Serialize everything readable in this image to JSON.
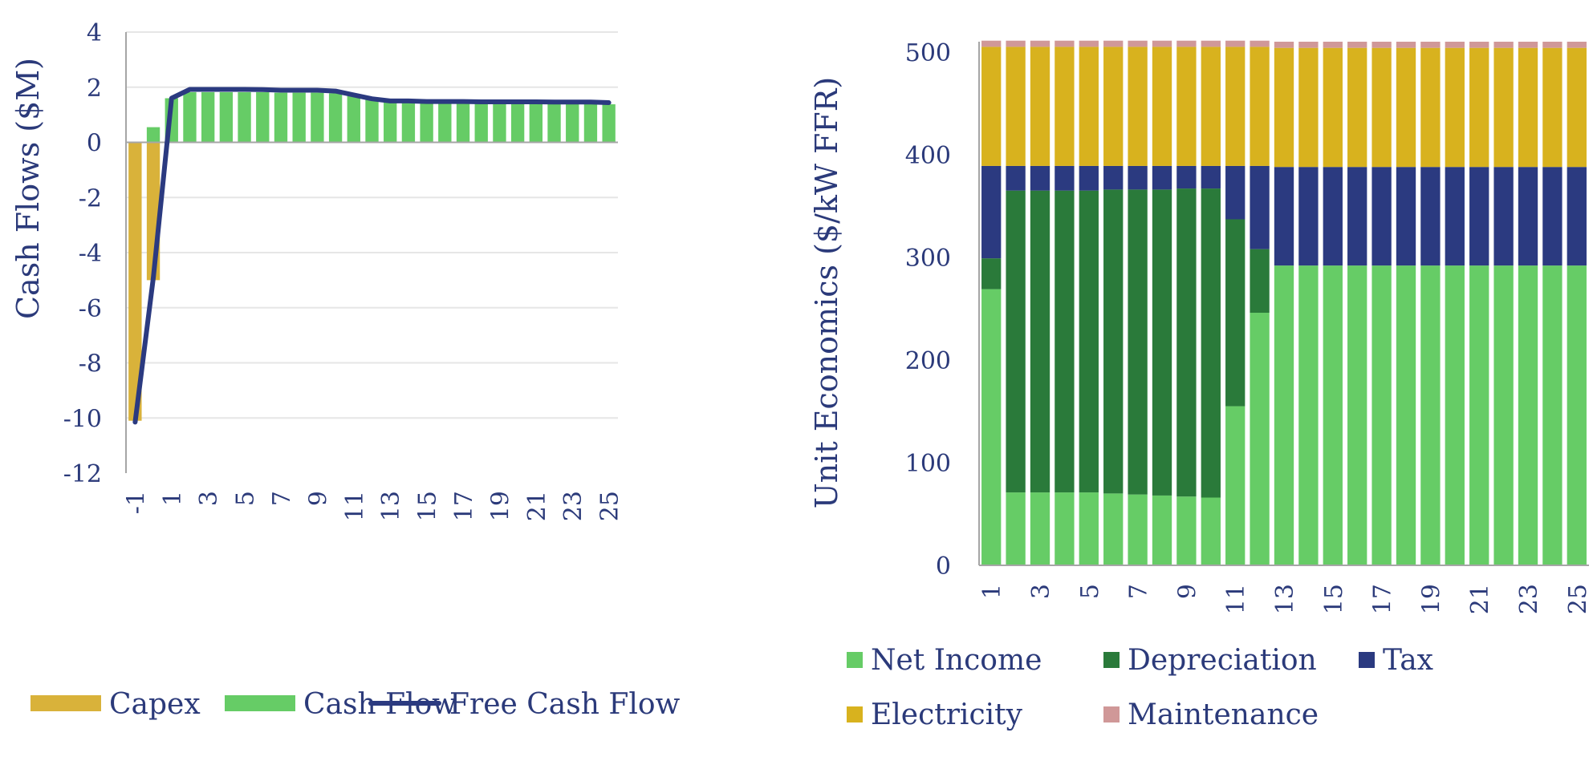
{
  "colors": {
    "capex": "#d9b23a",
    "cash_flow": "#66cc66",
    "free_cash_flow": "#2b3a80",
    "net_income": "#66cc66",
    "depreciation": "#2a7a3a",
    "tax": "#2b3a80",
    "electricity": "#d8b21e",
    "maintenance": "#d09898",
    "text": "#2b3a7a",
    "grid": "#e6e6e6",
    "axis": "#a6a6a6"
  },
  "chart_data": [
    {
      "type": "bar",
      "subtype": "bar+line",
      "ylabel": "Cash Flows ($M)",
      "xlabel": "",
      "ylim": [
        -12,
        4
      ],
      "y_ticks": [
        4,
        2,
        0,
        -2,
        -4,
        -6,
        -8,
        -10,
        -12
      ],
      "x": [
        -1,
        0,
        1,
        2,
        3,
        4,
        5,
        6,
        7,
        8,
        9,
        10,
        11,
        12,
        13,
        14,
        15,
        16,
        17,
        18,
        19,
        20,
        21,
        22,
        23,
        24,
        25
      ],
      "x_tick_labels": [
        "-1",
        "1",
        "3",
        "5",
        "7",
        "9",
        "11",
        "13",
        "15",
        "17",
        "19",
        "21",
        "23",
        "25"
      ],
      "grid": true,
      "legend": "bottom",
      "series": [
        {
          "name": "Capex",
          "type": "bar",
          "values": [
            -10.1,
            -5.0,
            0,
            0,
            0,
            0,
            0,
            0,
            0,
            0,
            0,
            0,
            0,
            0,
            0,
            0,
            0,
            0,
            0,
            0,
            0,
            0,
            0,
            0,
            0,
            0,
            0
          ]
        },
        {
          "name": "Cash Flow",
          "type": "bar",
          "values": [
            0,
            0.55,
            1.6,
            1.82,
            1.82,
            1.82,
            1.82,
            1.82,
            1.8,
            1.8,
            1.8,
            1.78,
            1.68,
            1.55,
            1.45,
            1.44,
            1.43,
            1.42,
            1.42,
            1.41,
            1.41,
            1.4,
            1.4,
            1.4,
            1.4,
            1.39,
            1.38
          ]
        },
        {
          "name": "Free Cash Flow",
          "type": "line",
          "values": [
            -10.15,
            -4.9,
            1.6,
            1.92,
            1.92,
            1.92,
            1.92,
            1.91,
            1.89,
            1.89,
            1.89,
            1.86,
            1.72,
            1.58,
            1.5,
            1.5,
            1.48,
            1.48,
            1.48,
            1.47,
            1.47,
            1.47,
            1.47,
            1.46,
            1.46,
            1.46,
            1.44
          ]
        }
      ]
    },
    {
      "type": "bar",
      "subtype": "stacked",
      "ylabel": "Unit Economics ($/kW FFR)",
      "xlabel": "",
      "ylim": [
        0,
        510
      ],
      "y_ticks": [
        0,
        100,
        200,
        300,
        400,
        500
      ],
      "categories": [
        1,
        2,
        3,
        4,
        5,
        6,
        7,
        8,
        9,
        10,
        11,
        12,
        13,
        14,
        15,
        16,
        17,
        18,
        19,
        20,
        21,
        22,
        23,
        24,
        25
      ],
      "x_tick_labels": [
        "1",
        "3",
        "5",
        "7",
        "9",
        "11",
        "13",
        "15",
        "17",
        "19",
        "21",
        "23",
        "25"
      ],
      "grid": false,
      "legend": "bottom",
      "series": [
        {
          "name": "Net Income",
          "values": [
            269,
            71,
            71,
            71,
            71,
            70,
            69,
            68,
            67,
            66,
            155,
            246,
            292,
            292,
            292,
            292,
            292,
            292,
            292,
            292,
            292,
            292,
            292,
            292,
            292
          ]
        },
        {
          "name": "Depreciation",
          "values": [
            30,
            294,
            294,
            294,
            294,
            296,
            297,
            298,
            300,
            301,
            182,
            62,
            0,
            0,
            0,
            0,
            0,
            0,
            0,
            0,
            0,
            0,
            0,
            0,
            0
          ]
        },
        {
          "name": "Tax",
          "values": [
            90,
            24,
            24,
            24,
            24,
            23,
            23,
            23,
            22,
            22,
            52,
            81,
            96,
            96,
            96,
            96,
            96,
            96,
            96,
            96,
            96,
            96,
            96,
            96,
            96
          ]
        },
        {
          "name": "Electricity",
          "values": [
            116,
            116,
            116,
            116,
            116,
            116,
            116,
            116,
            116,
            116,
            116,
            116,
            116,
            116,
            116,
            116,
            116,
            116,
            116,
            116,
            116,
            116,
            116,
            116,
            116
          ]
        },
        {
          "name": "Maintenance",
          "values": [
            6,
            6,
            6,
            6,
            6,
            6,
            6,
            6,
            6,
            6,
            6,
            6,
            6,
            6,
            6,
            6,
            6,
            6,
            6,
            6,
            6,
            6,
            6,
            6,
            6
          ]
        }
      ]
    }
  ]
}
